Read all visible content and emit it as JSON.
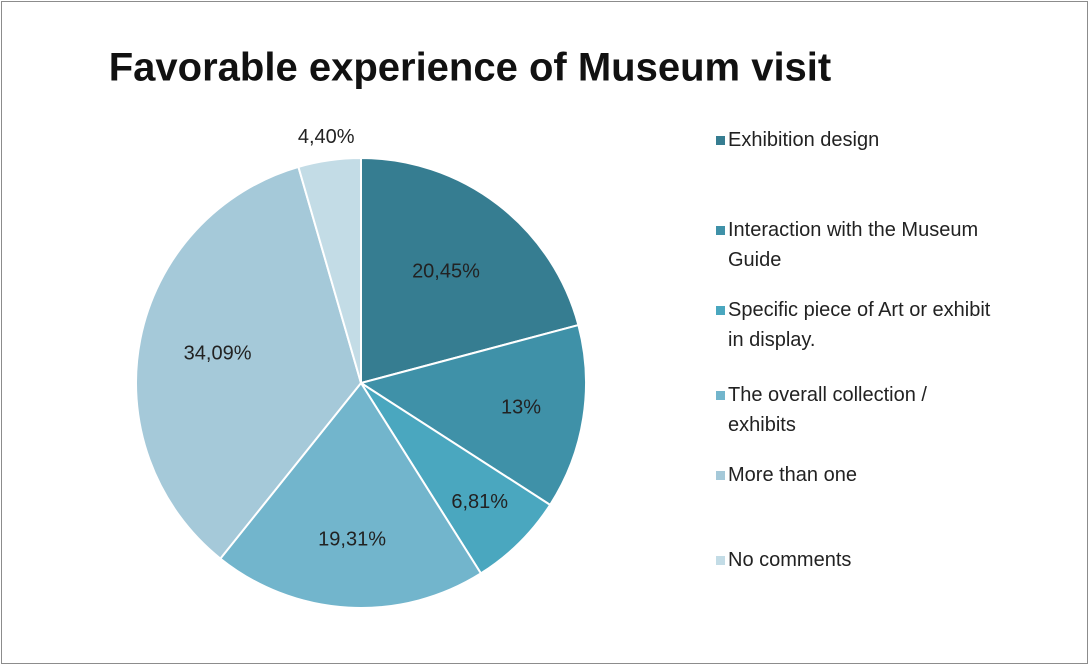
{
  "chart_data": {
    "type": "pie",
    "title": "Favorable experience of Museum visit",
    "categories": [
      "Exhibition design",
      "Interaction with the Museum Guide",
      "Specific piece of Art or exhibit in display.",
      "The overall collection / exhibits",
      "More than one",
      "No comments"
    ],
    "values": [
      20.45,
      13,
      6.81,
      19.31,
      34.09,
      4.4
    ],
    "value_labels": [
      "20,45%",
      "13%",
      "6,81%",
      "19,31%",
      "34,09%",
      "4,40%"
    ],
    "colors": [
      "#367d91",
      "#3f91a8",
      "#4aa7bf",
      "#72b5cc",
      "#a5c9d9",
      "#c3dce6"
    ],
    "legend": "right"
  }
}
